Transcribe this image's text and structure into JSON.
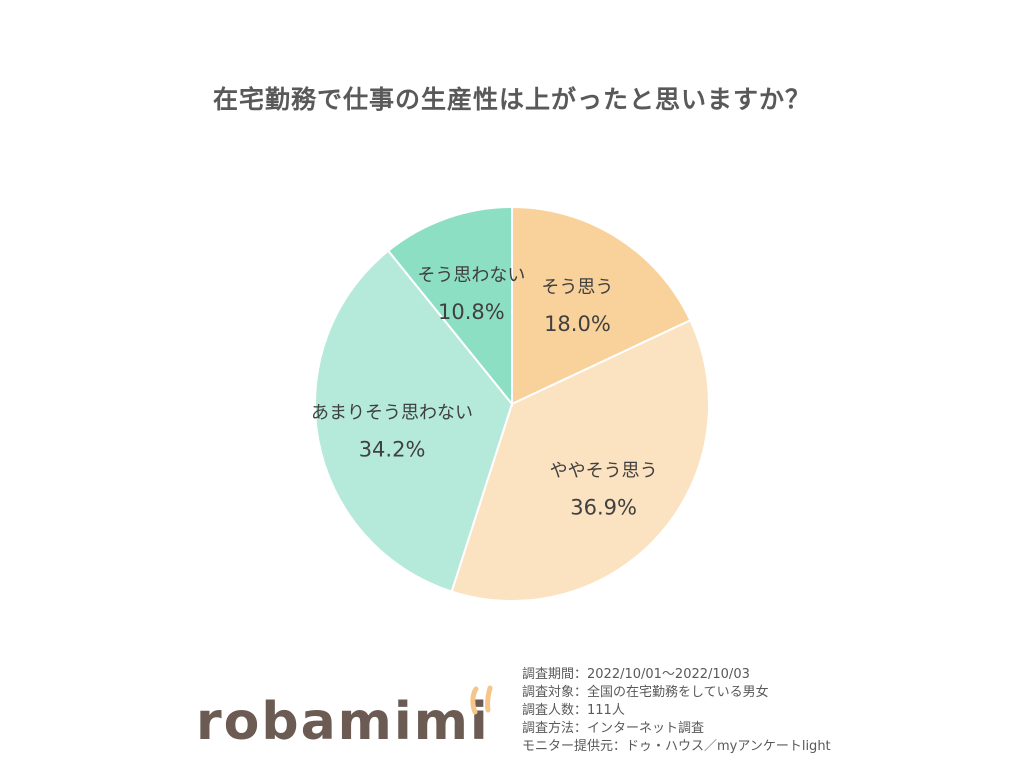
{
  "chart_data": {
    "type": "pie",
    "title": "在宅勤務で仕事の生産性は上がったと思いますか？",
    "slices": [
      {
        "label": "そう思う",
        "value": 18.0,
        "display": "18.0%",
        "color": "#f9d29b"
      },
      {
        "label": "ややそう思う",
        "value": 36.9,
        "display": "36.9%",
        "color": "#fbe2c0"
      },
      {
        "label": "あまりそう思わない",
        "value": 34.2,
        "display": "34.2%",
        "color": "#b5eadb"
      },
      {
        "label": "そう思わない",
        "value": 10.8,
        "display": "10.8%",
        "color": "#8ddfc3"
      }
    ]
  },
  "notes": [
    "調査期間：2022/10/01～2022/10/03",
    "調査対象：全国の在宅勤務をしている男女",
    "調査人数：111人",
    "調査方法：インターネット調査",
    "モニター提供元：ドゥ・ハウス／myアンケートlight"
  ],
  "logo": {
    "text": "robamimi",
    "color": "#6b5b53",
    "ears_color": "#f7c58a"
  }
}
